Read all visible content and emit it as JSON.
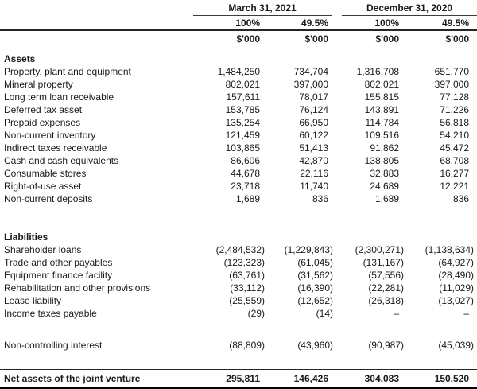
{
  "colors": {
    "text": "#1a1a1a",
    "rule_light": "#3c3c3c",
    "rule_dark": "#000000"
  },
  "table": {
    "col_groups": [
      {
        "label": "March 31, 2021",
        "subcols": [
          "100%",
          "49.5%"
        ]
      },
      {
        "label": "December 31, 2020",
        "subcols": [
          "100%",
          "49.5%"
        ]
      }
    ],
    "unit_label": "$'000",
    "sections": [
      {
        "header": "Assets",
        "rows": [
          {
            "label": "Property, plant and equipment",
            "values": [
              "1,484,250",
              "734,704",
              "1,316,708",
              "651,770"
            ]
          },
          {
            "label": "Mineral property",
            "values": [
              "802,021",
              "397,000",
              "802,021",
              "397,000"
            ]
          },
          {
            "label": "Long term loan receivable",
            "values": [
              "157,611",
              "78,017",
              "155,815",
              "77,128"
            ]
          },
          {
            "label": "Deferred tax asset",
            "values": [
              "153,785",
              "76,124",
              "143,891",
              "71,226"
            ]
          },
          {
            "label": "Prepaid expenses",
            "values": [
              "135,254",
              "66,950",
              "114,784",
              "56,818"
            ]
          },
          {
            "label": "Non-current inventory",
            "values": [
              "121,459",
              "60,122",
              "109,516",
              "54,210"
            ]
          },
          {
            "label": "Indirect taxes receivable",
            "values": [
              "103,865",
              "51,413",
              "91,862",
              "45,472"
            ]
          },
          {
            "label": "Cash and cash equivalents",
            "values": [
              "86,606",
              "42,870",
              "138,805",
              "68,708"
            ]
          },
          {
            "label": "Consumable stores",
            "values": [
              "44,678",
              "22,116",
              "32,883",
              "16,277"
            ]
          },
          {
            "label": "Right-of-use asset",
            "values": [
              "23,718",
              "11,740",
              "24,689",
              "12,221"
            ]
          },
          {
            "label": "Non-current deposits",
            "values": [
              "1,689",
              "836",
              "1,689",
              "836"
            ]
          }
        ]
      },
      {
        "header": "Liabilities",
        "rows": [
          {
            "label": "Shareholder loans",
            "values": [
              "(2,484,532)",
              "(1,229,843)",
              "(2,300,271)",
              "(1,138,634)"
            ]
          },
          {
            "label": "Trade and other payables",
            "values": [
              "(123,323)",
              "(61,045)",
              "(131,167)",
              "(64,927)"
            ]
          },
          {
            "label": "Equipment finance facility",
            "values": [
              "(63,761)",
              "(31,562)",
              "(57,556)",
              "(28,490)"
            ]
          },
          {
            "label": "Rehabilitation and other provisions",
            "values": [
              "(33,112)",
              "(16,390)",
              "(22,281)",
              "(11,029)"
            ]
          },
          {
            "label": "Lease liability",
            "values": [
              "(25,559)",
              "(12,652)",
              "(26,318)",
              "(13,027)"
            ]
          },
          {
            "label": "Income taxes payable",
            "values": [
              "(29)",
              "(14)",
              "–",
              "–"
            ]
          }
        ]
      }
    ],
    "other_rows": [
      {
        "label": "Non-controlling interest",
        "values": [
          "(88,809)",
          "(43,960)",
          "(90,987)",
          "(45,039)"
        ]
      }
    ],
    "total_row": {
      "label": "Net assets of the joint venture",
      "values": [
        "295,811",
        "146,426",
        "304,083",
        "150,520"
      ]
    }
  }
}
